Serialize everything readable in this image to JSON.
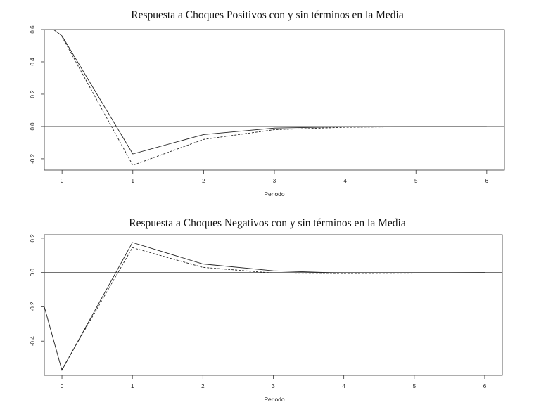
{
  "chart_data": [
    {
      "type": "line",
      "title": "Respuesta a Choques Positivos con y sin términos en la Media",
      "xlabel": "Periodo",
      "ylabel": "",
      "xlim": [
        -0.25,
        6.25
      ],
      "ylim": [
        -0.27,
        0.6
      ],
      "xticks": [
        "0",
        "1",
        "2",
        "3",
        "4",
        "5",
        "6"
      ],
      "yticks": [
        "-0.2",
        "0.0",
        "0.2",
        "0.4",
        "0.6"
      ],
      "zero_line": 0,
      "series": [
        {
          "style": "solid",
          "x": [
            -0.12,
            0,
            1,
            2,
            3,
            4,
            5,
            6
          ],
          "y": [
            0.6,
            0.56,
            -0.17,
            -0.05,
            -0.01,
            -0.002,
            0.0,
            0.0
          ]
        },
        {
          "style": "dashed",
          "x": [
            0,
            1,
            2,
            3,
            4,
            5,
            5.8
          ],
          "y": [
            0.555,
            -0.24,
            -0.08,
            -0.02,
            -0.005,
            -0.001,
            0.0
          ]
        }
      ]
    },
    {
      "type": "line",
      "title": "Respuesta a Choques Negativos con y sin términos en la Media",
      "xlabel": "Periodo",
      "ylabel": "",
      "xlim": [
        -0.25,
        6.25
      ],
      "ylim": [
        -0.6,
        0.22
      ],
      "xticks": [
        "0",
        "1",
        "2",
        "3",
        "4",
        "5",
        "6"
      ],
      "yticks": [
        "-0.4",
        "-0.2",
        "0.0",
        "0.2"
      ],
      "zero_line": 0,
      "series": [
        {
          "style": "solid",
          "x": [
            -0.25,
            0,
            1,
            2,
            3,
            4,
            5,
            6
          ],
          "y": [
            -0.2,
            -0.57,
            0.175,
            0.05,
            0.01,
            -0.003,
            -0.002,
            0.0
          ]
        },
        {
          "style": "dashed",
          "x": [
            0,
            1,
            2,
            3,
            4,
            5,
            5.5
          ],
          "y": [
            -0.565,
            0.145,
            0.03,
            -0.003,
            -0.006,
            -0.004,
            -0.003
          ]
        }
      ]
    }
  ]
}
